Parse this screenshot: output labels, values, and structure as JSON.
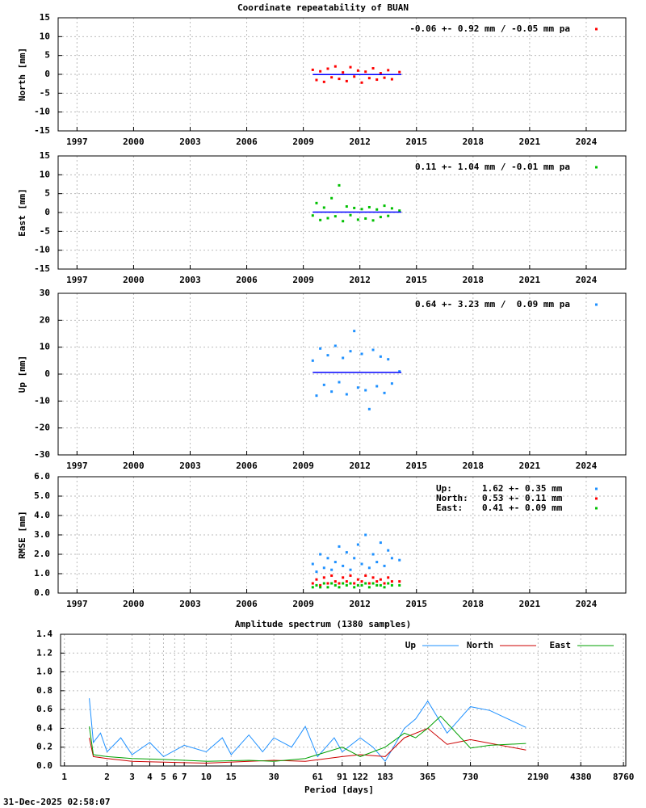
{
  "chart_data": [
    {
      "type": "scatter",
      "title": "Coordinate repeatability of BUAN",
      "y_label": "North [mm]",
      "grid": true,
      "xlim": [
        1996,
        2026.1
      ],
      "xticks": [
        1997,
        2000,
        2003,
        2006,
        2009,
        2012,
        2015,
        2018,
        2021,
        2024
      ],
      "ylim": [
        -15,
        15
      ],
      "yticks": [
        -15,
        -10,
        -5,
        0,
        5,
        10,
        15
      ],
      "annotation": "-0.06 +- 0.92 mm / -0.05 mm pa",
      "series": [
        {
          "color": "#ff0000",
          "x": [
            2009.5,
            2009.7,
            2009.9,
            2010.1,
            2010.3,
            2010.5,
            2010.7,
            2010.9,
            2011.1,
            2011.3,
            2011.5,
            2011.7,
            2011.9,
            2012.1,
            2012.3,
            2012.5,
            2012.7,
            2012.9,
            2013.1,
            2013.3,
            2013.5,
            2013.7,
            2014.1
          ],
          "values": [
            1.2,
            -1.5,
            0.8,
            -2.0,
            1.5,
            -0.8,
            2.1,
            -1.2,
            0.5,
            -1.8,
            1.9,
            -0.6,
            1.0,
            -2.2,
            0.7,
            -1.0,
            1.6,
            -1.4,
            0.3,
            -0.9,
            1.1,
            -1.3,
            0.6
          ]
        }
      ],
      "trend": {
        "color": "#0000ff",
        "x": [
          2009.5,
          2014.2
        ],
        "values": [
          -0.06,
          -0.06
        ]
      }
    },
    {
      "type": "scatter",
      "y_label": "East [mm]",
      "grid": true,
      "xlim": [
        1996,
        2026.1
      ],
      "xticks": [
        1997,
        2000,
        2003,
        2006,
        2009,
        2012,
        2015,
        2018,
        2021,
        2024
      ],
      "ylim": [
        -15,
        15
      ],
      "yticks": [
        -15,
        -10,
        -5,
        0,
        5,
        10,
        15
      ],
      "annotation": "0.11 +- 1.04 mm / -0.01 mm pa",
      "series": [
        {
          "color": "#00c000",
          "x": [
            2009.5,
            2009.7,
            2009.9,
            2010.1,
            2010.3,
            2010.5,
            2010.7,
            2010.9,
            2011.1,
            2011.3,
            2011.5,
            2011.7,
            2011.9,
            2012.1,
            2012.3,
            2012.5,
            2012.7,
            2012.9,
            2013.1,
            2013.3,
            2013.5,
            2013.7,
            2014.1
          ],
          "values": [
            -0.8,
            2.5,
            -2.0,
            1.3,
            -1.5,
            3.8,
            -1.0,
            7.2,
            -2.3,
            1.6,
            -0.7,
            1.2,
            -1.9,
            0.9,
            -1.6,
            1.4,
            -2.1,
            0.8,
            -1.2,
            1.8,
            -0.9,
            1.1,
            0.5
          ]
        }
      ],
      "trend": {
        "color": "#0000ff",
        "x": [
          2009.5,
          2014.2
        ],
        "values": [
          0.11,
          0.11
        ]
      }
    },
    {
      "type": "scatter",
      "y_label": "Up [mm]",
      "grid": true,
      "xlim": [
        1996,
        2026.1
      ],
      "xticks": [
        1997,
        2000,
        2003,
        2006,
        2009,
        2012,
        2015,
        2018,
        2021,
        2024
      ],
      "ylim": [
        -30,
        30
      ],
      "yticks": [
        -30,
        -20,
        -10,
        0,
        10,
        20,
        30
      ],
      "annotation": "0.64 +- 3.23 mm /  0.09 mm pa",
      "series": [
        {
          "color": "#1e90ff",
          "x": [
            2009.5,
            2009.7,
            2009.9,
            2010.1,
            2010.3,
            2010.5,
            2010.7,
            2010.9,
            2011.1,
            2011.3,
            2011.5,
            2011.7,
            2011.9,
            2012.1,
            2012.3,
            2012.5,
            2012.7,
            2012.9,
            2013.1,
            2013.3,
            2013.5,
            2013.7,
            2014.1
          ],
          "values": [
            5.0,
            -8.0,
            9.5,
            -4.0,
            7.0,
            -6.5,
            10.5,
            -3.0,
            6.0,
            -7.5,
            8.5,
            16.0,
            -5.0,
            7.5,
            -6.0,
            -13.0,
            9.0,
            -4.5,
            6.5,
            -7.0,
            5.5,
            -3.5,
            1.0
          ]
        }
      ],
      "trend": {
        "color": "#0000ff",
        "x": [
          2009.5,
          2014.2
        ],
        "values": [
          0.64,
          0.64
        ]
      }
    },
    {
      "type": "scatter",
      "y_label": "RMSE [mm]",
      "grid": true,
      "xlim": [
        1996,
        2026.1
      ],
      "xticks": [
        1997,
        2000,
        2003,
        2006,
        2009,
        2012,
        2015,
        2018,
        2021,
        2024
      ],
      "ylim": [
        0,
        6
      ],
      "yticks": [
        {
          "value": 0,
          "label": "0.0"
        },
        {
          "value": 1,
          "label": "1.0"
        },
        {
          "value": 2,
          "label": "2.0"
        },
        {
          "value": 3,
          "label": "3.0"
        },
        {
          "value": 4,
          "label": "4.0"
        },
        {
          "value": 5,
          "label": "5.0"
        },
        {
          "value": 6,
          "label": "6.0"
        }
      ],
      "series": [
        {
          "name": "Up:",
          "stat": "1.62 +- 0.35 mm",
          "color": "#1e90ff",
          "x": [
            2009.5,
            2009.7,
            2009.9,
            2010.1,
            2010.3,
            2010.5,
            2010.7,
            2010.9,
            2011.1,
            2011.3,
            2011.5,
            2011.7,
            2011.9,
            2012.1,
            2012.3,
            2012.5,
            2012.7,
            2012.9,
            2013.1,
            2013.3,
            2013.5,
            2013.7,
            2014.1
          ],
          "values": [
            1.5,
            1.1,
            2.0,
            1.3,
            1.8,
            1.2,
            1.6,
            2.4,
            1.4,
            2.1,
            1.2,
            1.8,
            2.5,
            1.5,
            3.0,
            1.3,
            2.0,
            1.6,
            2.6,
            1.4,
            2.2,
            1.8,
            1.7
          ]
        },
        {
          "name": "North:",
          "stat": "0.53 +- 0.11 mm",
          "color": "#ff0000",
          "x": [
            2009.5,
            2009.7,
            2009.9,
            2010.1,
            2010.3,
            2010.5,
            2010.7,
            2010.9,
            2011.1,
            2011.3,
            2011.5,
            2011.7,
            2011.9,
            2012.1,
            2012.3,
            2012.5,
            2012.7,
            2012.9,
            2013.1,
            2013.3,
            2013.5,
            2013.7,
            2014.1
          ],
          "values": [
            0.5,
            0.7,
            0.4,
            0.8,
            0.5,
            0.9,
            0.6,
            0.5,
            0.8,
            0.6,
            0.9,
            0.5,
            0.7,
            0.6,
            0.9,
            0.5,
            0.8,
            0.6,
            0.7,
            0.5,
            0.8,
            0.6,
            0.6
          ]
        },
        {
          "name": "East:",
          "stat": "0.41 +- 0.09 mm",
          "color": "#00c000",
          "x": [
            2009.5,
            2009.7,
            2009.9,
            2010.1,
            2010.3,
            2010.5,
            2010.7,
            2010.9,
            2011.1,
            2011.3,
            2011.5,
            2011.7,
            2011.9,
            2012.1,
            2012.3,
            2012.5,
            2012.7,
            2012.9,
            2013.1,
            2013.3,
            2013.5,
            2013.7,
            2014.1
          ],
          "values": [
            0.3,
            0.4,
            0.3,
            0.5,
            0.3,
            0.5,
            0.4,
            0.3,
            0.5,
            0.4,
            0.5,
            0.3,
            0.4,
            0.4,
            0.5,
            0.3,
            0.5,
            0.4,
            0.4,
            0.3,
            0.5,
            0.4,
            0.4
          ]
        }
      ]
    },
    {
      "type": "line",
      "title": "Amplitude spectrum (1380 samples)",
      "x_label": "Period [days]",
      "grid": true,
      "log_x": true,
      "xlim": [
        0.94,
        9100
      ],
      "xticks": [
        1,
        2,
        3,
        4,
        5,
        6,
        7,
        10,
        15,
        30,
        61,
        91,
        122,
        183,
        365,
        730,
        2190,
        4380,
        8760
      ],
      "ylim": [
        0,
        1.4
      ],
      "yticks": [
        {
          "value": 0,
          "label": "0.0"
        },
        {
          "value": 0.2,
          "label": "0.2"
        },
        {
          "value": 0.4,
          "label": "0.4"
        },
        {
          "value": 0.6,
          "label": "0.6"
        },
        {
          "value": 0.8,
          "label": "0.8"
        },
        {
          "value": 1,
          "label": "1.0"
        },
        {
          "value": 1.2,
          "label": "1.2"
        },
        {
          "value": 1.4,
          "label": "1.4"
        }
      ],
      "series": [
        {
          "name": "Up",
          "color": "#1e90ff",
          "x": [
            1.5,
            1.6,
            1.8,
            2,
            2.5,
            3,
            4,
            5,
            7,
            10,
            13,
            15,
            20,
            25,
            30,
            40,
            50,
            61,
            80,
            91,
            122,
            150,
            183,
            250,
            300,
            365,
            500,
            730,
            1000,
            1800
          ],
          "values": [
            0.72,
            0.25,
            0.35,
            0.15,
            0.3,
            0.12,
            0.25,
            0.1,
            0.22,
            0.15,
            0.3,
            0.12,
            0.33,
            0.15,
            0.3,
            0.2,
            0.42,
            0.1,
            0.3,
            0.15,
            0.3,
            0.2,
            0.05,
            0.4,
            0.5,
            0.69,
            0.35,
            0.63,
            0.59,
            0.41
          ]
        },
        {
          "name": "North",
          "color": "#cc0000",
          "x": [
            1.5,
            1.6,
            2,
            3,
            5,
            10,
            20,
            30,
            50,
            91,
            122,
            183,
            250,
            365,
            500,
            730,
            1800
          ],
          "values": [
            0.3,
            0.1,
            0.08,
            0.05,
            0.04,
            0.03,
            0.05,
            0.06,
            0.05,
            0.1,
            0.12,
            0.1,
            0.3,
            0.4,
            0.23,
            0.28,
            0.17
          ]
        },
        {
          "name": "East",
          "color": "#00a000",
          "x": [
            1.5,
            1.6,
            2,
            3,
            5,
            10,
            20,
            30,
            50,
            91,
            122,
            183,
            250,
            300,
            365,
            450,
            730,
            1000,
            1800
          ],
          "values": [
            0.42,
            0.12,
            0.1,
            0.08,
            0.07,
            0.05,
            0.06,
            0.05,
            0.08,
            0.2,
            0.1,
            0.2,
            0.35,
            0.3,
            0.4,
            0.53,
            0.19,
            0.22,
            0.24
          ]
        }
      ]
    }
  ],
  "footer": "31-Dec-2025 02:58:07"
}
